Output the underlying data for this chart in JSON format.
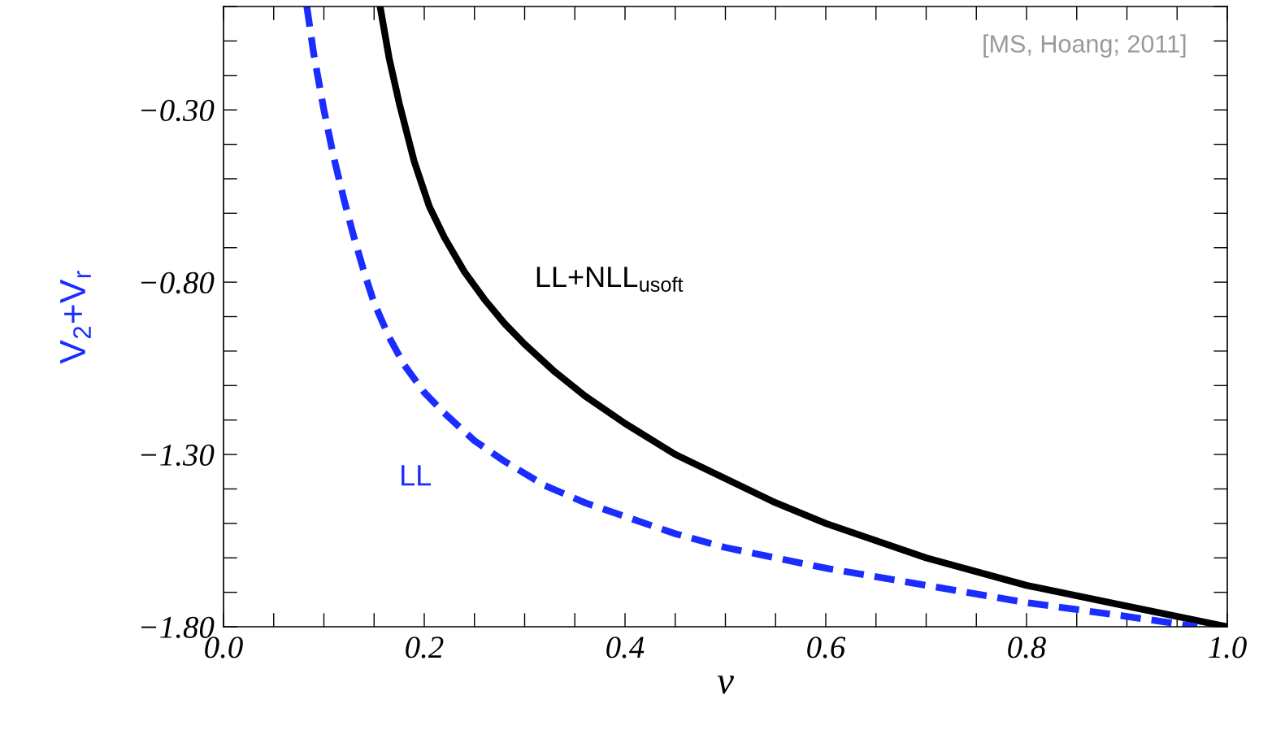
{
  "chart_data": {
    "type": "line",
    "xlabel": "ν",
    "ylabel": "V$_{2}$+V$_{r}$",
    "annotations": [
      "[MS, Hoang; 2011]"
    ],
    "series": [
      {
        "name": "LL+NLL$_{usoft}$",
        "color": "#000000",
        "line_style": "solid",
        "x": [
          0.156,
          0.165,
          0.175,
          0.19,
          0.205,
          0.22,
          0.24,
          0.26,
          0.28,
          0.3,
          0.33,
          0.36,
          0.4,
          0.45,
          0.5,
          0.55,
          0.6,
          0.7,
          0.8,
          0.9,
          1.0
        ],
        "values": [
          0.0,
          -0.15,
          -0.28,
          -0.45,
          -0.58,
          -0.67,
          -0.77,
          -0.85,
          -0.92,
          -0.98,
          -1.06,
          -1.13,
          -1.21,
          -1.3,
          -1.37,
          -1.44,
          -1.5,
          -1.6,
          -1.68,
          -1.74,
          -1.8
        ]
      },
      {
        "name": "LL",
        "color": "#1a2cff",
        "line_style": "dashed",
        "x": [
          0.083,
          0.09,
          0.1,
          0.11,
          0.12,
          0.13,
          0.14,
          0.15,
          0.165,
          0.18,
          0.2,
          0.22,
          0.25,
          0.28,
          0.32,
          0.36,
          0.4,
          0.45,
          0.5,
          0.6,
          0.7,
          0.8,
          0.9,
          0.97
        ],
        "values": [
          0.0,
          -0.14,
          -0.3,
          -0.44,
          -0.56,
          -0.67,
          -0.77,
          -0.86,
          -0.96,
          -1.04,
          -1.12,
          -1.18,
          -1.26,
          -1.32,
          -1.39,
          -1.44,
          -1.48,
          -1.53,
          -1.57,
          -1.63,
          -1.68,
          -1.73,
          -1.77,
          -1.8
        ]
      }
    ],
    "xlim": [
      0.0,
      1.0
    ],
    "ylim": [
      -1.8,
      0.0
    ],
    "xticks": [
      {
        "value": 0.0,
        "label": "0.0"
      },
      {
        "value": 0.2,
        "label": "0.2"
      },
      {
        "value": 0.4,
        "label": "0.4"
      },
      {
        "value": 0.6,
        "label": "0.6"
      },
      {
        "value": 0.8,
        "label": "0.8"
      },
      {
        "value": 1.0,
        "label": "1.0"
      }
    ],
    "yticks": [
      {
        "value": -1.8,
        "label": "−1.80"
      },
      {
        "value": -1.3,
        "label": "−1.30"
      },
      {
        "value": -0.8,
        "label": "−0.80"
      },
      {
        "value": -0.3,
        "label": "−0.30"
      }
    ],
    "grid": false,
    "legend": false
  }
}
